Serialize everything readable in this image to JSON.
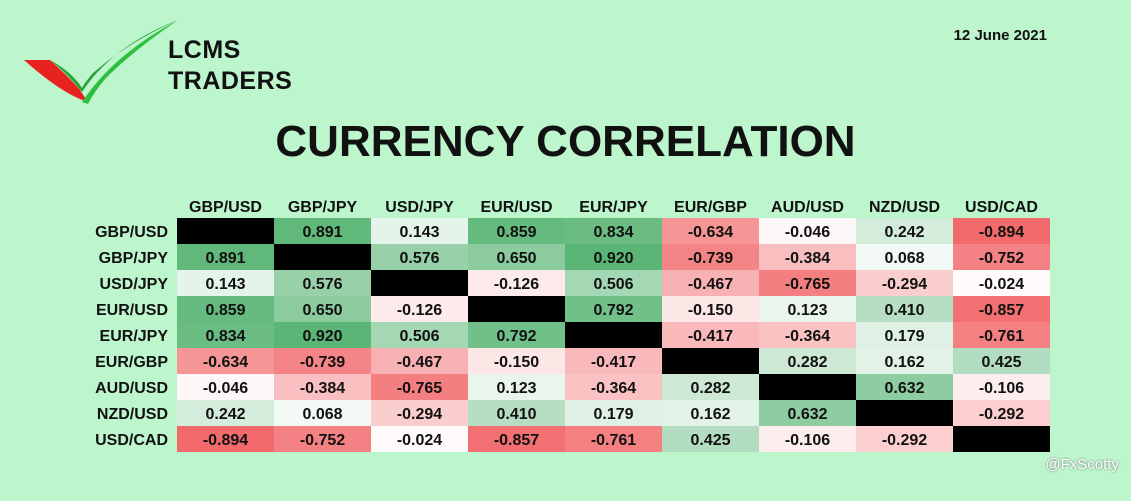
{
  "brand": {
    "line1": "LCMS",
    "line2": "TRADERS"
  },
  "date": "12 June 2021",
  "title": "CURRENCY CORRELATION",
  "watermark": "@FxScotty",
  "colors": {
    "background": "#bdf5cc",
    "diagonal": "#000000",
    "positive": "#4caf6a",
    "negative": "#f0585a",
    "neutral": "#ffffff",
    "logo_green": "#27a335",
    "logo_red": "#e8231f"
  },
  "chart_data": {
    "type": "heatmap",
    "title": "CURRENCY CORRELATION",
    "columns": [
      "GBP/USD",
      "GBP/JPY",
      "USD/JPY",
      "EUR/USD",
      "EUR/JPY",
      "EUR/GBP",
      "AUD/USD",
      "NZD/USD",
      "USD/CAD"
    ],
    "rows": [
      "GBP/USD",
      "GBP/JPY",
      "USD/JPY",
      "EUR/USD",
      "EUR/JPY",
      "EUR/GBP",
      "AUD/USD",
      "NZD/USD",
      "USD/CAD"
    ],
    "values": [
      [
        null,
        0.891,
        0.143,
        0.859,
        0.834,
        -0.634,
        -0.046,
        0.242,
        -0.894
      ],
      [
        0.891,
        null,
        0.576,
        0.65,
        0.92,
        -0.739,
        -0.384,
        0.068,
        -0.752
      ],
      [
        0.143,
        0.576,
        null,
        -0.126,
        0.506,
        -0.467,
        -0.765,
        -0.294,
        -0.024
      ],
      [
        0.859,
        0.65,
        -0.126,
        null,
        0.792,
        -0.15,
        0.123,
        0.41,
        -0.857
      ],
      [
        0.834,
        0.92,
        0.506,
        0.792,
        null,
        -0.417,
        -0.364,
        0.179,
        -0.761
      ],
      [
        -0.634,
        -0.739,
        -0.467,
        -0.15,
        -0.417,
        null,
        0.282,
        0.162,
        0.425
      ],
      [
        -0.046,
        -0.384,
        -0.765,
        0.123,
        -0.364,
        0.282,
        null,
        0.632,
        -0.106
      ],
      [
        0.242,
        0.068,
        -0.294,
        0.41,
        0.179,
        0.162,
        0.632,
        null,
        -0.292
      ],
      [
        -0.894,
        -0.752,
        -0.024,
        -0.857,
        -0.761,
        0.425,
        -0.106,
        -0.292,
        null
      ]
    ],
    "diagonal": "black",
    "decimals": 3
  }
}
